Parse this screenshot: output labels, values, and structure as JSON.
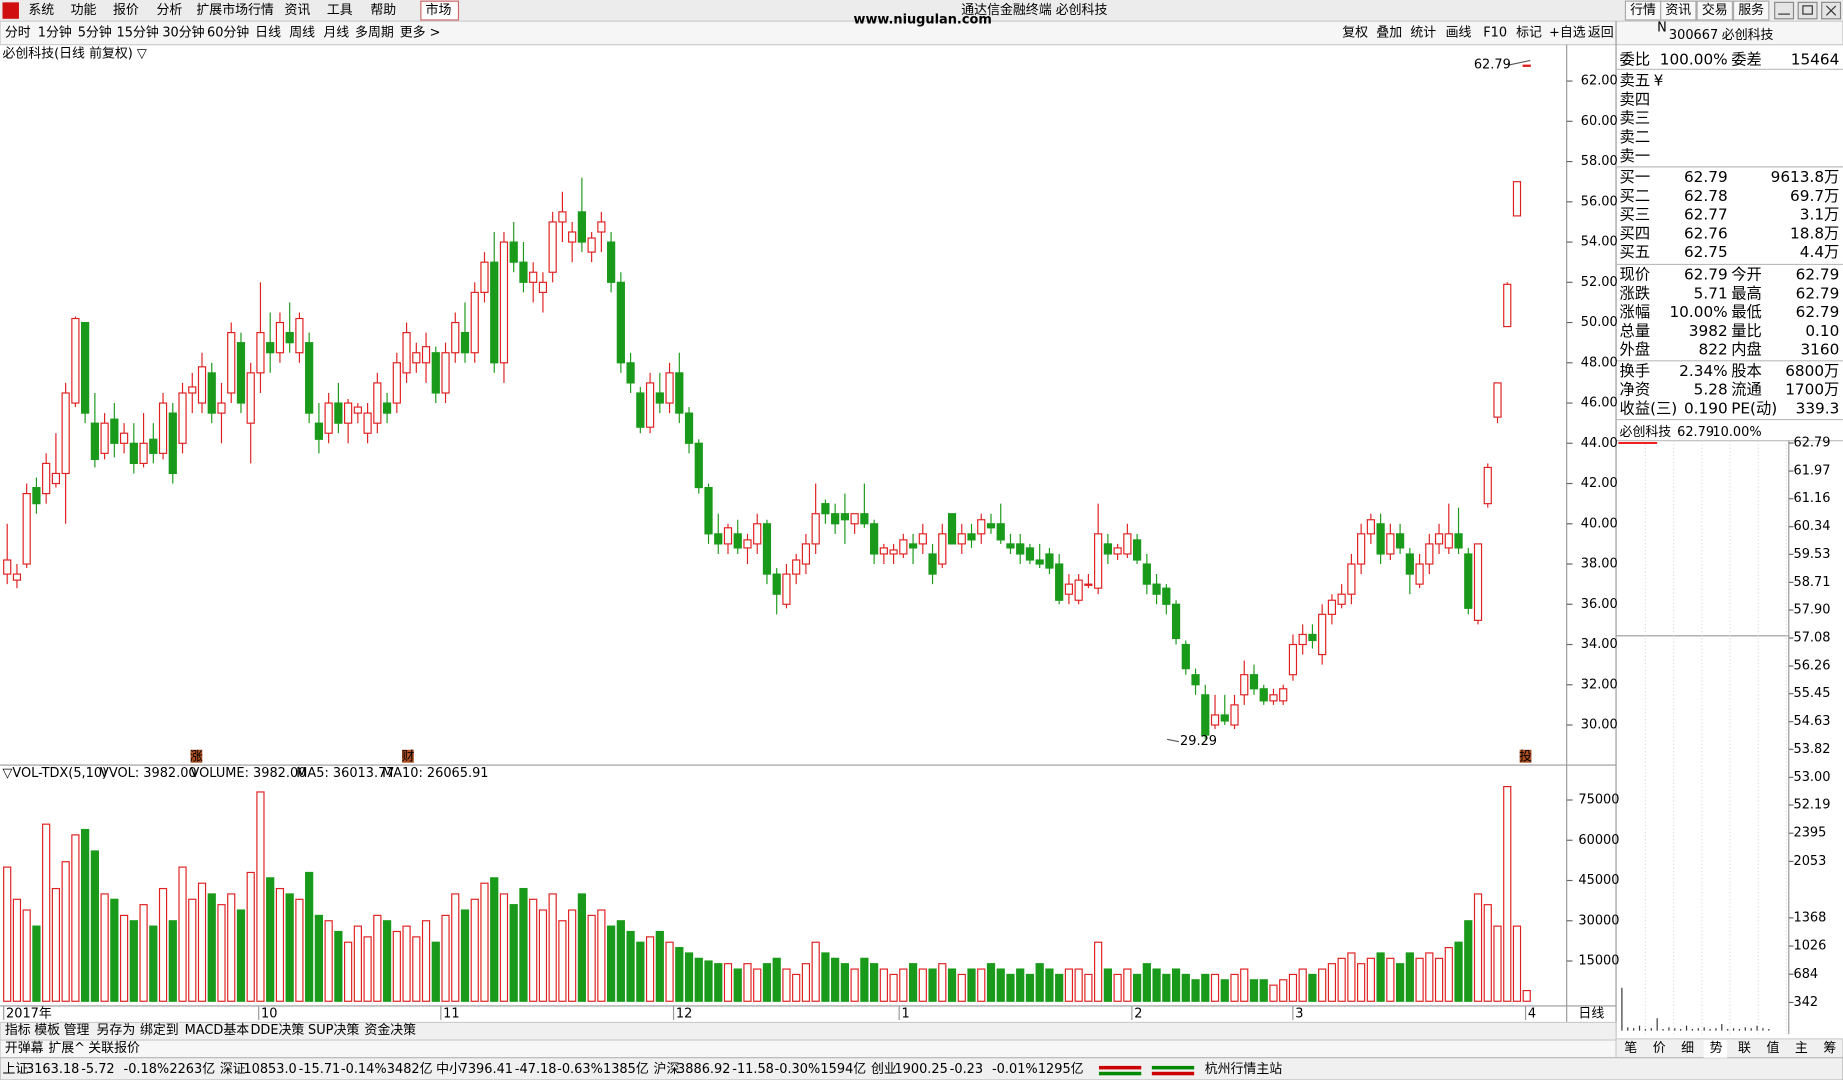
{
  "menu": {
    "items": [
      "系统",
      "功能",
      "报价",
      "分析",
      "扩展市场行情",
      "资讯",
      "工具",
      "帮助"
    ],
    "market": "市场",
    "window_title": "通达信金融终端 必创科技",
    "watermark": "www.niugulan.com",
    "right": [
      "行情",
      "资讯",
      "交易",
      "服务"
    ]
  },
  "toolbar": {
    "periods": [
      "分时",
      "1分钟",
      "5分钟",
      "15分钟",
      "30分钟",
      "60分钟",
      "日线",
      "周线",
      "月线",
      "多周期",
      "更多 >"
    ],
    "tools": [
      "复权",
      "叠加",
      "统计",
      "画线",
      "F10",
      "标记",
      "+自选",
      "返回"
    ]
  },
  "stock": {
    "badge": "N",
    "code": "300667",
    "name": "必创科技"
  },
  "chart": {
    "title": "必创科技(日线 前复权) ▽",
    "price_lim": [
      28.01,
      63.81
    ],
    "price_ticks": [
      {
        "value": 62,
        "label": "62.00"
      },
      {
        "value": 60,
        "label": "60.00"
      },
      {
        "value": 58,
        "label": "58.00"
      },
      {
        "value": 56,
        "label": "56.00"
      },
      {
        "value": 54,
        "label": "54.00"
      },
      {
        "value": 52,
        "label": "52.00"
      },
      {
        "value": 50,
        "label": "50.00"
      },
      {
        "value": 48,
        "label": "48.00"
      },
      {
        "value": 46,
        "label": "46.00"
      },
      {
        "value": 44,
        "label": "44.00"
      },
      {
        "value": 42,
        "label": "42.00"
      },
      {
        "value": 40,
        "label": "40.00"
      },
      {
        "value": 38,
        "label": "38.00"
      },
      {
        "value": 36,
        "label": "36.00"
      },
      {
        "value": 34,
        "label": "34.00"
      },
      {
        "value": 32,
        "label": "32.00"
      },
      {
        "value": 30,
        "label": "30.00"
      }
    ],
    "high_label": "62.79",
    "low_label": "29.29",
    "candles": [
      [
        37.5,
        40.0,
        37.0,
        38.2
      ],
      [
        37.2,
        38.0,
        36.8,
        37.5
      ],
      [
        38.0,
        42.0,
        37.8,
        41.5
      ],
      [
        41.8,
        42.3,
        40.5,
        41.0
      ],
      [
        41.5,
        43.5,
        41.0,
        43.0
      ],
      [
        42.0,
        44.5,
        41.8,
        42.5
      ],
      [
        42.5,
        47.0,
        40.0,
        46.5
      ],
      [
        46.0,
        50.3,
        45.8,
        50.2
      ],
      [
        50.0,
        50.0,
        45.0,
        45.5
      ],
      [
        45.0,
        46.5,
        42.8,
        43.2
      ],
      [
        43.5,
        45.5,
        43.2,
        45.0
      ],
      [
        45.2,
        46.0,
        43.3,
        44.0
      ],
      [
        44.0,
        45.0,
        43.5,
        44.5
      ],
      [
        44.0,
        45.0,
        42.5,
        43.0
      ],
      [
        43.0,
        45.5,
        42.8,
        44.0
      ],
      [
        44.2,
        45.0,
        43.0,
        43.5
      ],
      [
        43.5,
        46.5,
        43.2,
        46.0
      ],
      [
        45.5,
        46.0,
        42.0,
        42.5
      ],
      [
        44.0,
        47.0,
        43.5,
        46.5
      ],
      [
        46.5,
        47.5,
        45.5,
        46.8
      ],
      [
        46.0,
        48.5,
        45.5,
        47.8
      ],
      [
        47.5,
        48.0,
        45.0,
        45.5
      ],
      [
        45.5,
        47.0,
        44.0,
        46.0
      ],
      [
        46.5,
        50.0,
        46.0,
        49.5
      ],
      [
        49.0,
        49.5,
        45.5,
        46.0
      ],
      [
        45.0,
        48.0,
        43.0,
        47.5
      ],
      [
        47.5,
        52.0,
        46.5,
        49.5
      ],
      [
        49.0,
        50.5,
        47.5,
        48.5
      ],
      [
        48.5,
        50.5,
        48.0,
        50.0
      ],
      [
        49.5,
        51.0,
        48.5,
        49.0
      ],
      [
        48.5,
        50.5,
        48.0,
        50.2
      ],
      [
        49.0,
        49.5,
        45.0,
        45.5
      ],
      [
        45.0,
        46.0,
        43.5,
        44.2
      ],
      [
        44.5,
        46.5,
        44.0,
        46.0
      ],
      [
        46.0,
        47.0,
        44.5,
        45.0
      ],
      [
        45.0,
        46.2,
        44.0,
        46.0
      ],
      [
        45.5,
        46.0,
        45.0,
        45.8
      ],
      [
        44.5,
        46.0,
        44.0,
        45.5
      ],
      [
        45.0,
        47.5,
        44.5,
        47.0
      ],
      [
        46.0,
        46.5,
        45.0,
        45.5
      ],
      [
        46.0,
        48.5,
        45.5,
        48.0
      ],
      [
        47.5,
        50.0,
        47.0,
        49.5
      ],
      [
        48.0,
        49.0,
        47.5,
        48.5
      ],
      [
        48.0,
        49.5,
        47.0,
        48.8
      ],
      [
        48.5,
        48.8,
        46.0,
        46.5
      ],
      [
        46.5,
        49.0,
        46.0,
        48.5
      ],
      [
        48.5,
        50.5,
        48.0,
        50.0
      ],
      [
        49.5,
        51.0,
        48.0,
        48.5
      ],
      [
        48.5,
        52.0,
        48.0,
        51.5
      ],
      [
        51.5,
        53.5,
        51.0,
        53.0
      ],
      [
        53.0,
        54.5,
        47.5,
        48.0
      ],
      [
        48.0,
        54.5,
        47.0,
        54.0
      ],
      [
        54.0,
        55.0,
        52.5,
        53.0
      ],
      [
        53.0,
        54.0,
        51.5,
        52.0
      ],
      [
        52.0,
        53.0,
        51.0,
        52.5
      ],
      [
        51.5,
        52.5,
        50.5,
        52.0
      ],
      [
        52.5,
        55.5,
        52.0,
        55.0
      ],
      [
        55.0,
        56.5,
        54.0,
        55.5
      ],
      [
        54.0,
        55.0,
        53.0,
        54.5
      ],
      [
        55.5,
        57.2,
        53.5,
        54.0
      ],
      [
        53.5,
        54.5,
        53.0,
        54.2
      ],
      [
        54.5,
        55.5,
        53.5,
        55.0
      ],
      [
        54.0,
        54.5,
        51.5,
        52.0
      ],
      [
        52.0,
        52.5,
        47.5,
        48.0
      ],
      [
        48.0,
        48.5,
        46.5,
        47.0
      ],
      [
        46.5,
        46.8,
        44.5,
        44.8
      ],
      [
        44.8,
        47.5,
        44.5,
        47.0
      ],
      [
        46.5,
        47.5,
        45.5,
        46.0
      ],
      [
        46.0,
        48.0,
        45.5,
        47.5
      ],
      [
        47.5,
        48.5,
        45.0,
        45.5
      ],
      [
        45.5,
        45.8,
        43.5,
        44.0
      ],
      [
        44.0,
        44.2,
        41.5,
        41.8
      ],
      [
        41.8,
        42.0,
        39.0,
        39.5
      ],
      [
        39.5,
        40.5,
        38.5,
        39.0
      ],
      [
        39.0,
        40.0,
        38.5,
        39.8
      ],
      [
        39.5,
        40.2,
        38.5,
        38.8
      ],
      [
        38.8,
        39.5,
        38.0,
        39.2
      ],
      [
        39.0,
        40.5,
        38.5,
        40.0
      ],
      [
        40.0,
        40.2,
        37.0,
        37.5
      ],
      [
        37.5,
        37.8,
        35.5,
        36.5
      ],
      [
        36.0,
        38.0,
        35.8,
        37.5
      ],
      [
        37.5,
        38.5,
        37.0,
        38.2
      ],
      [
        38.0,
        39.5,
        37.5,
        39.0
      ],
      [
        39.0,
        42.0,
        38.5,
        40.5
      ],
      [
        41.0,
        41.2,
        40.0,
        40.5
      ],
      [
        40.5,
        41.0,
        39.5,
        40.0
      ],
      [
        40.5,
        41.5,
        39.0,
        40.2
      ],
      [
        40.0,
        40.5,
        39.5,
        40.5
      ],
      [
        40.5,
        42.0,
        39.8,
        40.0
      ],
      [
        40.0,
        40.2,
        38.0,
        38.5
      ],
      [
        38.5,
        39.0,
        38.0,
        38.8
      ],
      [
        38.5,
        39.0,
        38.0,
        38.7
      ],
      [
        38.5,
        39.5,
        38.3,
        39.2
      ],
      [
        39.0,
        39.5,
        38.0,
        38.8
      ],
      [
        39.0,
        40.0,
        38.5,
        39.5
      ],
      [
        38.5,
        39.0,
        37.0,
        37.5
      ],
      [
        38.0,
        40.0,
        37.8,
        39.5
      ],
      [
        40.5,
        40.5,
        39.0,
        39.0
      ],
      [
        39.0,
        40.0,
        38.5,
        39.5
      ],
      [
        39.5,
        40.0,
        38.8,
        39.2
      ],
      [
        39.5,
        40.5,
        39.0,
        40.2
      ],
      [
        40.0,
        40.5,
        39.5,
        39.8
      ],
      [
        40.0,
        41.0,
        39.0,
        39.2
      ],
      [
        39.0,
        39.5,
        38.5,
        38.8
      ],
      [
        39.0,
        39.5,
        38.0,
        38.5
      ],
      [
        38.8,
        39.0,
        38.0,
        38.2
      ],
      [
        38.2,
        39.0,
        37.8,
        38.0
      ],
      [
        38.5,
        38.8,
        37.5,
        37.8
      ],
      [
        38.0,
        38.5,
        36.0,
        36.2
      ],
      [
        36.5,
        37.5,
        36.0,
        37.0
      ],
      [
        36.2,
        37.5,
        36.0,
        37.2
      ],
      [
        37.0,
        37.5,
        36.8,
        37.0
      ],
      [
        36.8,
        41.0,
        36.5,
        39.5
      ],
      [
        39.0,
        39.5,
        38.0,
        38.5
      ],
      [
        38.5,
        39.0,
        38.2,
        38.8
      ],
      [
        38.5,
        40.0,
        38.3,
        39.5
      ],
      [
        39.2,
        39.5,
        38.0,
        38.2
      ],
      [
        38.0,
        38.5,
        36.5,
        37.0
      ],
      [
        37.0,
        37.5,
        36.0,
        36.5
      ],
      [
        36.8,
        37.0,
        35.5,
        36.0
      ],
      [
        36.0,
        36.2,
        34.0,
        34.3
      ],
      [
        34.0,
        34.2,
        32.5,
        32.8
      ],
      [
        32.5,
        32.8,
        31.5,
        32.0
      ],
      [
        31.5,
        32.0,
        29.29,
        29.5
      ],
      [
        30.0,
        31.5,
        29.8,
        30.5
      ],
      [
        30.5,
        31.5,
        30.0,
        30.2
      ],
      [
        30.0,
        31.5,
        29.8,
        31.0
      ],
      [
        31.5,
        33.2,
        31.0,
        32.5
      ],
      [
        32.5,
        33.0,
        31.5,
        31.8
      ],
      [
        31.8,
        32.0,
        31.0,
        31.2
      ],
      [
        31.2,
        31.8,
        31.0,
        31.5
      ],
      [
        31.2,
        32.0,
        31.0,
        31.8
      ],
      [
        32.5,
        34.5,
        32.2,
        34.0
      ],
      [
        34.0,
        35.0,
        33.5,
        34.5
      ],
      [
        34.5,
        35.0,
        33.8,
        34.2
      ],
      [
        33.5,
        36.0,
        33.0,
        35.5
      ],
      [
        35.5,
        36.5,
        35.0,
        36.2
      ],
      [
        36.0,
        37.0,
        35.8,
        36.5
      ],
      [
        36.5,
        38.5,
        36.0,
        38.0
      ],
      [
        38.0,
        40.0,
        37.5,
        39.5
      ],
      [
        39.5,
        40.5,
        39.0,
        40.2
      ],
      [
        40.0,
        40.5,
        38.0,
        38.5
      ],
      [
        38.5,
        40.0,
        38.2,
        39.5
      ],
      [
        39.5,
        40.0,
        38.5,
        38.8
      ],
      [
        38.5,
        38.8,
        36.5,
        37.5
      ],
      [
        37.0,
        38.5,
        36.8,
        38.0
      ],
      [
        38.0,
        39.5,
        37.5,
        39.0
      ],
      [
        39.0,
        40.0,
        38.5,
        39.5
      ],
      [
        38.8,
        41.0,
        38.5,
        39.5
      ],
      [
        39.5,
        40.8,
        38.5,
        38.8
      ],
      [
        38.5,
        38.8,
        35.5,
        35.8
      ],
      [
        35.2,
        39.0,
        35.0,
        39.0
      ],
      [
        41.0,
        43.0,
        40.8,
        42.8
      ],
      [
        45.3,
        47.0,
        45.0,
        47.0
      ],
      [
        49.8,
        52.0,
        49.8,
        51.9
      ],
      [
        55.3,
        57.0,
        55.3,
        57.0
      ],
      [
        62.79,
        62.79,
        62.79,
        62.79
      ]
    ],
    "markers": [
      "涨",
      "财",
      "投"
    ],
    "volume_header": [
      "▽VOL-TDX(5,10)",
      "VVOL: 3982.00",
      "VOLUME: 3982.00",
      "MA5: 36013.77",
      "MA10: 26065.91"
    ],
    "volume_lim": [
      0,
      85000
    ],
    "volume_ticks": [
      75000,
      60000,
      45000,
      30000,
      15000
    ],
    "volumes": [
      50000,
      38000,
      34000,
      28000,
      66000,
      42000,
      52000,
      62000,
      64000,
      56000,
      40000,
      38000,
      32000,
      30000,
      36000,
      28000,
      42000,
      30000,
      50000,
      38000,
      44000,
      40000,
      36000,
      40000,
      34000,
      48000,
      78000,
      46000,
      42000,
      40000,
      38000,
      48000,
      32000,
      30000,
      26000,
      22000,
      28000,
      24000,
      32000,
      30000,
      26000,
      28000,
      24000,
      30000,
      22000,
      32000,
      40000,
      34000,
      38000,
      44000,
      46000,
      40000,
      36000,
      42000,
      38000,
      34000,
      40000,
      30000,
      34000,
      40000,
      32000,
      34000,
      28000,
      30000,
      26000,
      22000,
      24000,
      26000,
      22000,
      20000,
      18000,
      16000,
      15000,
      14000,
      14000,
      12000,
      14000,
      12000,
      14000,
      16000,
      12000,
      10000,
      14000,
      22000,
      18000,
      16000,
      14000,
      12000,
      16000,
      14000,
      12000,
      10000,
      12000,
      14000,
      12000,
      12000,
      14000,
      12000,
      10000,
      12000,
      12000,
      14000,
      12000,
      10000,
      12000,
      10000,
      14000,
      12000,
      10000,
      12000,
      12000,
      10000,
      22000,
      12000,
      10000,
      12000,
      10000,
      14000,
      12000,
      10000,
      12000,
      10000,
      8000,
      10000,
      10000,
      8000,
      10000,
      12000,
      8000,
      8000,
      6000,
      8000,
      10000,
      12000,
      10000,
      12000,
      14000,
      16000,
      18000,
      14000,
      16000,
      18000,
      16000,
      14000,
      18000,
      16000,
      18000,
      16000,
      20000,
      22000,
      30000,
      40000,
      36000,
      28000,
      80000,
      28000,
      3982
    ],
    "date_labels": [
      "2017年",
      "10",
      "11",
      "12",
      "1",
      "2",
      "3",
      "4"
    ],
    "period_label": "日线"
  },
  "tabs": {
    "row1": [
      "指标",
      "模板",
      "管理",
      "另存为",
      "绑定到",
      "MACD基本",
      "DDE决策",
      "SUP决策",
      "资金决策"
    ],
    "row2": [
      "开弹幕",
      "扩展^",
      "关联报价"
    ],
    "right": [
      "笔",
      "价",
      "细",
      "势",
      "联",
      "值",
      "主",
      "筹"
    ]
  },
  "quote": {
    "wb": [
      "委比",
      "100.00%",
      "委差",
      "15464"
    ],
    "asks": [
      "卖五",
      "卖四",
      "卖三",
      "卖二",
      "卖一"
    ],
    "ask_icon": "¥",
    "bids": [
      [
        "买一",
        "62.79",
        "9613.8万"
      ],
      [
        "买二",
        "62.78",
        "69.7万"
      ],
      [
        "买三",
        "62.77",
        "3.1万"
      ],
      [
        "买四",
        "62.76",
        "18.8万"
      ],
      [
        "买五",
        "62.75",
        "4.4万"
      ]
    ],
    "stats": [
      [
        "现价",
        "62.79",
        "今开",
        "62.79"
      ],
      [
        "涨跌",
        "5.71",
        "最高",
        "62.79"
      ],
      [
        "涨幅",
        "10.00%",
        "最低",
        "62.79"
      ],
      [
        "总量",
        "3982",
        "量比",
        "0.10"
      ],
      [
        "外盘",
        "822",
        "内盘",
        "3160"
      ],
      [
        "换手",
        "2.34%",
        "股本",
        "6800万"
      ],
      [
        "净资",
        "5.28",
        "流通",
        "1700万"
      ],
      [
        "收益(三)",
        "0.190",
        "PE(动)",
        "339.3"
      ]
    ],
    "mini_header": [
      "必创科技",
      "62.79",
      "10.00%"
    ],
    "mini_price_lim": [
      52.19,
      62.79
    ],
    "mini_price_ticks": [
      62.79,
      61.97,
      61.16,
      60.34,
      59.53,
      58.71,
      {
        "value": 57.9,
        "label": "57.90"
      },
      57.08,
      56.26,
      55.45,
      54.63,
      53.82,
      {
        "value": 53,
        "label": "53.00"
      },
      52.19
    ],
    "mini_price": 62.79,
    "mini_volume_lim": [
      0,
      2395
    ],
    "mini_volume_ticks": [
      2395,
      2053,
      1368,
      1026,
      684,
      342
    ],
    "mini_volumes": [
      520,
      40,
      30,
      60,
      20,
      30,
      150,
      20,
      40,
      30,
      20,
      60,
      20,
      30,
      40,
      20,
      30,
      80,
      20,
      30,
      20,
      40,
      30,
      60,
      30,
      20
    ]
  },
  "status": {
    "indices": [
      [
        "上证",
        "3163.18",
        "-5.72",
        "-0.18%",
        "2263亿"
      ],
      [
        "深证",
        "10853.0",
        "-15.71",
        "-0.14%",
        "3482亿"
      ],
      [
        "中小",
        "7396.41",
        "-47.18",
        "-0.63%",
        "1385亿"
      ],
      [
        "沪深",
        "3886.92",
        "-11.58",
        "-0.30%",
        "1594亿"
      ],
      [
        "创业",
        "1900.25",
        "-0.23",
        "-0.01%",
        "1295亿"
      ]
    ],
    "station": "杭州行情主站"
  }
}
